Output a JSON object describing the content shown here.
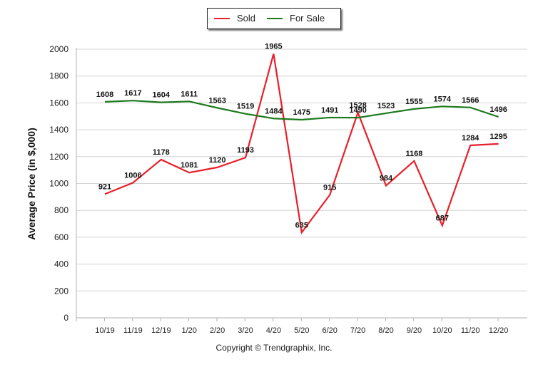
{
  "chart_data": {
    "type": "line",
    "categories": [
      "10/19",
      "11/19",
      "12/19",
      "1/20",
      "2/20",
      "3/20",
      "4/20",
      "5/20",
      "6/20",
      "7/20",
      "8/20",
      "9/20",
      "10/20",
      "11/20",
      "12/20"
    ],
    "series": [
      {
        "name": "Sold",
        "color": "#e8202a",
        "values": [
          921,
          1006,
          1178,
          1081,
          1120,
          1193,
          1965,
          635,
          915,
          1528,
          984,
          1168,
          687,
          1284,
          1295
        ]
      },
      {
        "name": "For Sale",
        "color": "#1e7a1e",
        "values": [
          1608,
          1617,
          1604,
          1611,
          1563,
          1519,
          1484,
          1475,
          1491,
          1490,
          1523,
          1555,
          1574,
          1566,
          1496
        ]
      }
    ],
    "title": "",
    "xlabel": "",
    "ylabel": "Average Price (in $,000)",
    "ylim": [
      0,
      2000
    ],
    "yticks": [
      0,
      200,
      400,
      600,
      800,
      1000,
      1200,
      1400,
      1600,
      1800,
      2000
    ],
    "grid": true,
    "legend_position": "top-center",
    "data_labels": true
  },
  "legend": {
    "sold": "Sold",
    "for_sale": "For Sale"
  },
  "footer": {
    "copyright": "Copyright © Trendgraphix, Inc."
  }
}
